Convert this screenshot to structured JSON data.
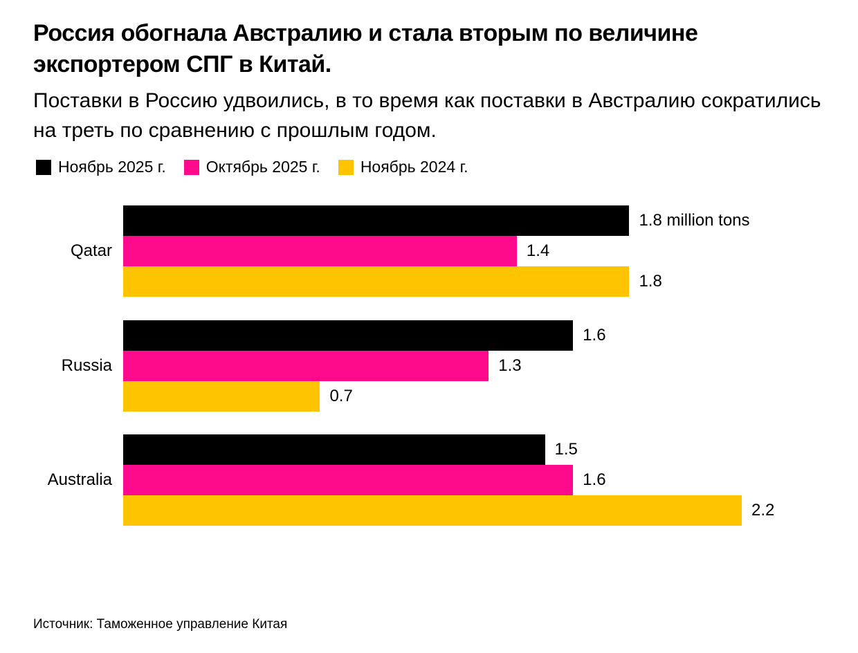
{
  "title": "Россия обогнала Австралию и стала вторым по величине экспортером СПГ в Китай.",
  "subtitle": "Поставки в Россию удвоились, в то время как поставки в Австралию сократились на треть по сравнению с прошлым годом.",
  "source": "Источник: Таможенное управление Китая",
  "chart_data": {
    "type": "bar",
    "orientation": "horizontal",
    "categories": [
      "Qatar",
      "Russia",
      "Australia"
    ],
    "unit": "million tons",
    "series": [
      {
        "name": "Ноябрь 2025 г.",
        "color": "#000000",
        "values": [
          1.8,
          1.6,
          1.5
        ],
        "labels": [
          "1.8 million tons",
          "1.6",
          "1.5"
        ]
      },
      {
        "name": "Октябрь 2025 г.",
        "color": "#ff0a8c",
        "values": [
          1.4,
          1.3,
          1.6
        ],
        "labels": [
          "1.4",
          "1.3",
          "1.6"
        ]
      },
      {
        "name": "Ноябрь 2024 г.",
        "color": "#ffc400",
        "values": [
          1.8,
          0.7,
          2.2
        ],
        "labels": [
          "1.8",
          "0.7",
          "2.2"
        ]
      }
    ],
    "xlim": [
      0,
      2.2
    ],
    "grid": false,
    "legend_position": "top-left"
  }
}
